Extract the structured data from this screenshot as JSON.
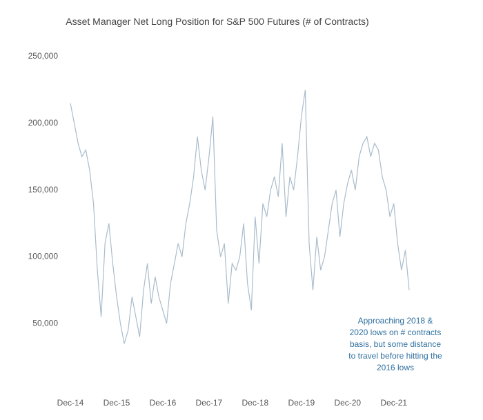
{
  "chart_data": {
    "type": "line",
    "title": "Asset Manager Net Long Position for S&P 500 Futures (# of Contracts)",
    "annotation": "Approaching 2018 & 2020 lows on # contracts basis, but some distance to travel before hitting the 2016 lows",
    "categories": [
      "Dec-14",
      null,
      null,
      null,
      null,
      null,
      null,
      null,
      null,
      null,
      null,
      null,
      "Dec-15",
      null,
      null,
      null,
      null,
      null,
      null,
      null,
      null,
      null,
      null,
      null,
      "Dec-16",
      null,
      null,
      null,
      null,
      null,
      null,
      null,
      null,
      null,
      null,
      null,
      "Dec-17",
      null,
      null,
      null,
      null,
      null,
      null,
      null,
      null,
      null,
      null,
      null,
      "Dec-18",
      null,
      null,
      null,
      null,
      null,
      null,
      null,
      null,
      null,
      null,
      null,
      "Dec-19",
      null,
      null,
      null,
      null,
      null,
      null,
      null,
      null,
      null,
      null,
      null,
      "Dec-20",
      null,
      null,
      null,
      null,
      null,
      null,
      null,
      null,
      null,
      null,
      null,
      "Dec-21",
      null,
      null,
      null,
      null
    ],
    "values": [
      215000,
      200000,
      185000,
      175000,
      180000,
      165000,
      140000,
      90000,
      55000,
      110000,
      125000,
      95000,
      70000,
      50000,
      35000,
      45000,
      70000,
      55000,
      40000,
      75000,
      95000,
      65000,
      85000,
      70000,
      60000,
      50000,
      80000,
      95000,
      110000,
      100000,
      125000,
      140000,
      160000,
      190000,
      165000,
      150000,
      175000,
      205000,
      120000,
      100000,
      110000,
      65000,
      95000,
      90000,
      100000,
      125000,
      80000,
      60000,
      130000,
      95000,
      140000,
      130000,
      150000,
      160000,
      145000,
      185000,
      130000,
      160000,
      150000,
      175000,
      205000,
      225000,
      110000,
      75000,
      115000,
      90000,
      100000,
      120000,
      140000,
      150000,
      115000,
      140000,
      155000,
      165000,
      150000,
      175000,
      185000,
      190000,
      175000,
      185000,
      180000,
      160000,
      150000,
      130000,
      140000,
      110000,
      90000,
      105000,
      75000
    ],
    "color": "#a9bccb",
    "ylim": [
      0,
      250000
    ],
    "yticks": [
      {
        "value": 50000,
        "label": "50,000"
      },
      {
        "value": 100000,
        "label": "100,000"
      },
      {
        "value": 150000,
        "label": "150,000"
      },
      {
        "value": 200000,
        "label": "200,000"
      },
      {
        "value": 250000,
        "label": "250,000"
      }
    ],
    "grid": false
  }
}
